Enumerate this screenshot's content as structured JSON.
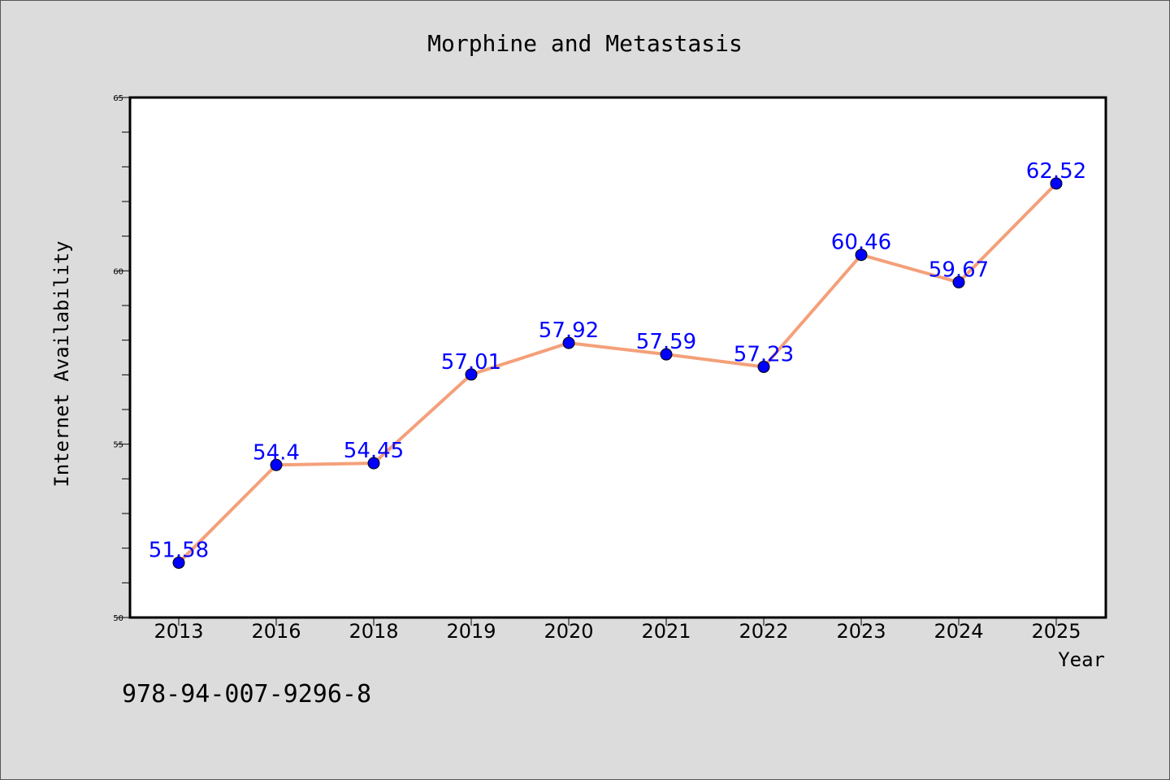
{
  "chart_data": {
    "type": "line",
    "title": "Morphine and Metastasis",
    "xlabel": "Year",
    "ylabel": "Internet Availability",
    "categories": [
      "2013",
      "2016",
      "2018",
      "2019",
      "2020",
      "2021",
      "2022",
      "2023",
      "2024",
      "2025"
    ],
    "series": [
      {
        "values": [
          51.58,
          54.4,
          54.45,
          57.01,
          57.92,
          57.59,
          57.23,
          60.46,
          59.67,
          62.52
        ],
        "labels": [
          "51.58",
          "54.4",
          "54.45",
          "57.01",
          "57.92",
          "57.59",
          "57.23",
          "60.46",
          "59.67",
          "62.52"
        ],
        "line_color": "#f4a07a",
        "marker_color": "#0000ff"
      }
    ],
    "ylim": [
      50,
      65
    ],
    "yticks": [
      "50",
      "55",
      "60",
      "65"
    ],
    "grid": false,
    "legend": "none"
  },
  "footer": {
    "isbn": "978-94-007-9296-8"
  }
}
